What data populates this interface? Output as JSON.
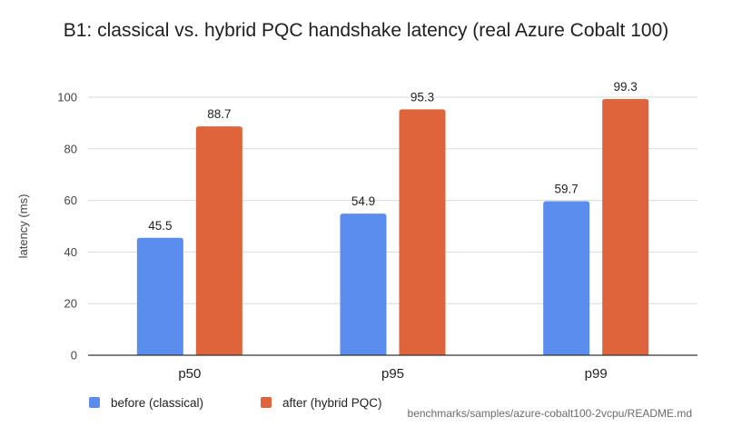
{
  "chart_data": {
    "type": "bar",
    "title": "B1: classical vs. hybrid PQC handshake latency (real Azure Cobalt 100)",
    "xlabel": "",
    "ylabel": "latency (ms)",
    "categories": [
      "p50",
      "p95",
      "p99"
    ],
    "series": [
      {
        "name": "before (classical)",
        "color": "#5b8def",
        "values": [
          45.5,
          54.9,
          59.7
        ],
        "labels": [
          "45.5",
          "54.9",
          "59.7"
        ]
      },
      {
        "name": "after (hybrid PQC)",
        "color": "#e0643b",
        "values": [
          88.7,
          95.3,
          99.3
        ],
        "labels": [
          "88.7",
          "95.3",
          "99.3"
        ]
      }
    ],
    "ylim": [
      0,
      100
    ],
    "yticks": [
      0,
      20,
      40,
      60,
      80,
      100
    ],
    "ytick_labels": [
      "0",
      "20",
      "40",
      "60",
      "80",
      "100"
    ],
    "grid": true,
    "legend_position": "bottom-left"
  },
  "footer": {
    "note": "benchmarks/samples/azure-cobalt100-2vcpu/README.md"
  }
}
